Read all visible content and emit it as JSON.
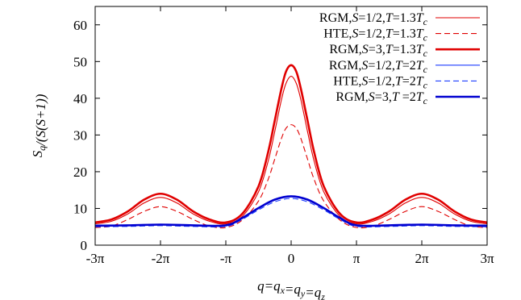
{
  "chart_data": {
    "type": "line",
    "xlabel": "q=q_x=q_y=q_z",
    "ylabel": "S_q/(S(S+1))",
    "xlim": [
      -3,
      3
    ],
    "x_unit": "π",
    "ylim": [
      0,
      65
    ],
    "x_ticks": [
      {
        "value": -3,
        "label": "-3π"
      },
      {
        "value": -2,
        "label": "-2π"
      },
      {
        "value": -1,
        "label": "-π"
      },
      {
        "value": 0,
        "label": "0"
      },
      {
        "value": 1,
        "label": "π"
      },
      {
        "value": 2,
        "label": "2π"
      },
      {
        "value": 3,
        "label": "3π"
      }
    ],
    "y_ticks": [
      0,
      10,
      20,
      30,
      40,
      50,
      60
    ],
    "grid": false,
    "legend_position": "top-right",
    "series": [
      {
        "name": "RGM, S=1/2, T=1.3T_c",
        "legend": {
          "pre": "RGM,",
          "p1": "S",
          "m1": "=1/2,",
          "p2": "T",
          "m2": "=1.3",
          "p3": "T",
          "sub": "c"
        },
        "color": "#e00000",
        "style": "solid",
        "width": "thin",
        "x": [
          -3.0,
          -2.75,
          -2.5,
          -2.25,
          -2.0,
          -1.75,
          -1.5,
          -1.25,
          -1.0,
          -0.75,
          -0.5,
          -0.35,
          -0.25,
          -0.15,
          -0.08,
          0.0,
          0.08,
          0.15,
          0.25,
          0.35,
          0.5,
          0.75,
          1.0,
          1.25,
          1.5,
          1.75,
          2.0,
          2.25,
          2.5,
          2.75,
          3.0
        ],
        "y": [
          5.8,
          6.5,
          8.5,
          11.5,
          13.0,
          11.5,
          8.5,
          6.5,
          5.8,
          7.8,
          14.5,
          23.0,
          31.0,
          39.5,
          44.0,
          46.0,
          44.0,
          39.5,
          31.0,
          23.0,
          14.5,
          7.8,
          5.8,
          6.5,
          8.5,
          11.5,
          13.0,
          11.5,
          8.5,
          6.5,
          5.8
        ]
      },
      {
        "name": "HTE, S=1/2, T=1.3T_c",
        "legend": {
          "pre": "HTE,",
          "p1": "S",
          "m1": "=1/2,",
          "p2": "T",
          "m2": "=1.3",
          "p3": "T",
          "sub": "c"
        },
        "color": "#e00000",
        "style": "dashed",
        "width": "thin",
        "x": [
          -3.0,
          -2.75,
          -2.5,
          -2.25,
          -2.0,
          -1.75,
          -1.5,
          -1.25,
          -1.0,
          -0.75,
          -0.5,
          -0.35,
          -0.25,
          -0.15,
          -0.08,
          0.0,
          0.08,
          0.15,
          0.25,
          0.35,
          0.5,
          0.75,
          1.0,
          1.25,
          1.5,
          1.75,
          2.0,
          2.25,
          2.5,
          2.75,
          3.0
        ],
        "y": [
          4.8,
          5.2,
          7.0,
          9.2,
          10.5,
          9.2,
          7.0,
          5.2,
          4.8,
          6.8,
          12.0,
          18.0,
          23.5,
          29.0,
          31.8,
          32.8,
          31.8,
          29.0,
          23.5,
          18.0,
          12.0,
          6.8,
          4.8,
          5.2,
          7.0,
          9.2,
          10.5,
          9.2,
          7.0,
          5.2,
          4.8
        ]
      },
      {
        "name": "RGM, S=3, T=1.3T_c",
        "legend": {
          "pre": "RGM,",
          "p1": "S",
          "m1": "=3,",
          "p2": "T",
          "m2": "=1.3",
          "p3": "T",
          "sub": "c"
        },
        "color": "#e00000",
        "style": "solid",
        "width": "thick",
        "x": [
          -3.0,
          -2.75,
          -2.5,
          -2.25,
          -2.0,
          -1.75,
          -1.5,
          -1.25,
          -1.0,
          -0.75,
          -0.5,
          -0.35,
          -0.25,
          -0.15,
          -0.08,
          0.0,
          0.08,
          0.15,
          0.25,
          0.35,
          0.5,
          0.75,
          1.0,
          1.25,
          1.5,
          1.75,
          2.0,
          2.25,
          2.5,
          2.75,
          3.0
        ],
        "y": [
          6.2,
          7.0,
          9.2,
          12.4,
          14.0,
          12.4,
          9.2,
          7.0,
          6.2,
          8.5,
          16.0,
          25.5,
          34.0,
          42.5,
          47.2,
          49.0,
          47.2,
          42.5,
          34.0,
          25.5,
          16.0,
          8.5,
          6.2,
          7.0,
          9.2,
          12.4,
          14.0,
          12.4,
          9.2,
          7.0,
          6.2
        ]
      },
      {
        "name": "RGM, S=1/2, T=2T_c",
        "legend": {
          "pre": "RGM,",
          "p1": "S",
          "m1": "=1/2,",
          "p2": "T",
          "m2": "=2",
          "p3": "T",
          "sub": "c"
        },
        "color": "#1f3fff",
        "style": "solid",
        "width": "thin",
        "x": [
          -3.0,
          -2.5,
          -2.0,
          -1.5,
          -1.0,
          -0.75,
          -0.5,
          -0.25,
          0.0,
          0.25,
          0.5,
          0.75,
          1.0,
          1.5,
          2.0,
          2.5,
          3.0
        ],
        "y": [
          5.2,
          5.3,
          5.5,
          5.3,
          5.3,
          7.3,
          10.0,
          12.3,
          13.2,
          12.3,
          10.0,
          7.3,
          5.3,
          5.3,
          5.5,
          5.3,
          5.2
        ]
      },
      {
        "name": "HTE, S=1/2, T=2T_c",
        "legend": {
          "pre": "HTE,",
          "p1": "S",
          "m1": "=1/2,",
          "p2": "T",
          "m2": "=2",
          "p3": "T",
          "sub": "c"
        },
        "color": "#1f3fff",
        "style": "dashed",
        "width": "thin",
        "x": [
          -3.0,
          -2.5,
          -2.0,
          -1.5,
          -1.0,
          -0.75,
          -0.5,
          -0.25,
          0.0,
          0.25,
          0.5,
          0.75,
          1.0,
          1.5,
          2.0,
          2.5,
          3.0
        ],
        "y": [
          5.0,
          5.1,
          5.3,
          5.1,
          5.1,
          7.0,
          9.6,
          11.8,
          12.7,
          11.8,
          9.6,
          7.0,
          5.1,
          5.1,
          5.3,
          5.1,
          5.0
        ]
      },
      {
        "name": "RGM, S=3, T=2T_c",
        "legend": {
          "pre": "RGM,",
          "p1": "S",
          "m1": "=3,",
          "p2": "T",
          "m2": " =2",
          "p3": "T",
          "sub": "c"
        },
        "color": "#0000d0",
        "style": "solid",
        "width": "thick",
        "x": [
          -3.0,
          -2.5,
          -2.0,
          -1.5,
          -1.0,
          -0.75,
          -0.5,
          -0.25,
          0.0,
          0.25,
          0.5,
          0.75,
          1.0,
          1.5,
          2.0,
          2.5,
          3.0
        ],
        "y": [
          5.3,
          5.4,
          5.6,
          5.4,
          5.4,
          7.4,
          10.1,
          12.4,
          13.3,
          12.4,
          10.1,
          7.4,
          5.4,
          5.4,
          5.6,
          5.4,
          5.3
        ]
      }
    ]
  }
}
